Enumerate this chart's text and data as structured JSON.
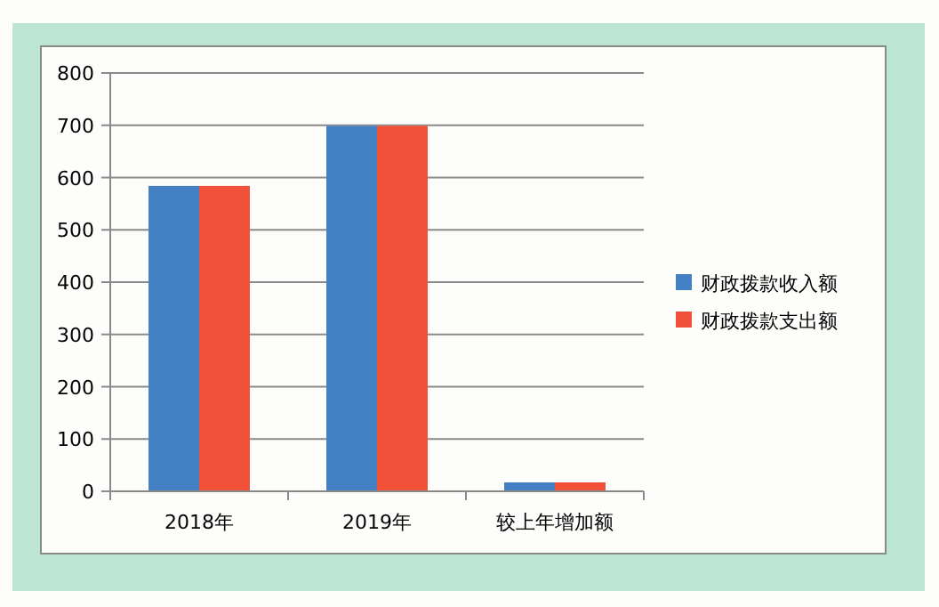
{
  "chart_data": {
    "type": "bar",
    "categories": [
      "2018年",
      "2019年",
      "较上年增加额"
    ],
    "series": [
      {
        "name": "财政拨款收入额",
        "color": "#4480c4",
        "values": [
          584,
          699,
          17
        ]
      },
      {
        "name": "财政拨款支出额",
        "color": "#f05138",
        "values": [
          584,
          699,
          17
        ]
      }
    ],
    "ylim": [
      0,
      800
    ],
    "yticks": [
      0,
      100,
      200,
      300,
      400,
      500,
      600,
      700,
      800
    ],
    "grid": "y",
    "legend": "right"
  }
}
